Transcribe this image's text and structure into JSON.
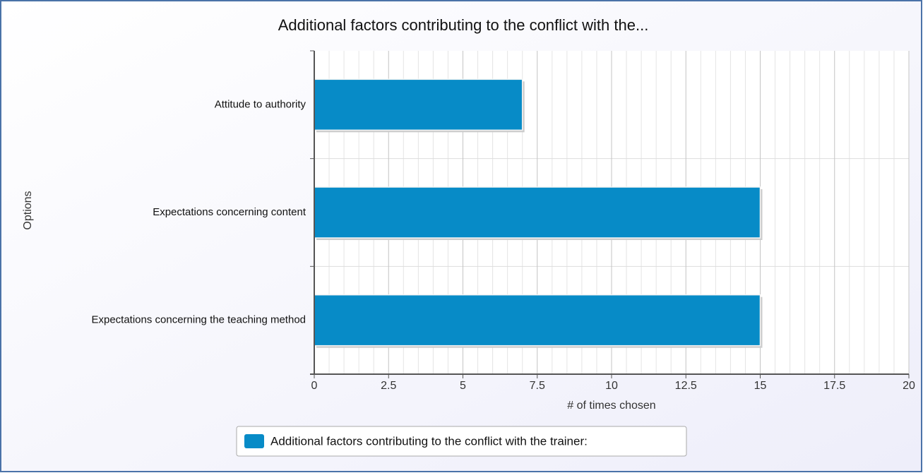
{
  "chart_data": {
    "type": "hbar",
    "title": "Additional factors contributing to the conflict with the...",
    "categories": [
      "Attitude to authority",
      "Expectations concerning content",
      "Expectations concerning the teaching method"
    ],
    "series": [
      {
        "name": "Additional factors contributing to the conflict with the trainer:",
        "color": "#078bc7",
        "values": [
          7,
          15,
          15
        ]
      }
    ],
    "x_label": "# of times chosen",
    "y_label": "Options",
    "xlim": [
      0,
      20
    ],
    "xticks": [
      0,
      2.5,
      5,
      7.5,
      10,
      12.5,
      15,
      17.5,
      20
    ],
    "xminorticks": [
      0.5,
      1,
      1.5,
      2,
      3,
      3.5,
      4,
      4.5,
      5.5,
      6,
      6.5,
      7,
      8,
      8.5,
      9,
      9.5,
      10.5,
      11,
      11.5,
      12,
      13,
      13.5,
      14,
      14.5,
      15.5,
      16,
      16.5,
      17,
      18,
      18.5,
      19,
      19.5
    ],
    "grid": true,
    "legend": "bottom"
  }
}
